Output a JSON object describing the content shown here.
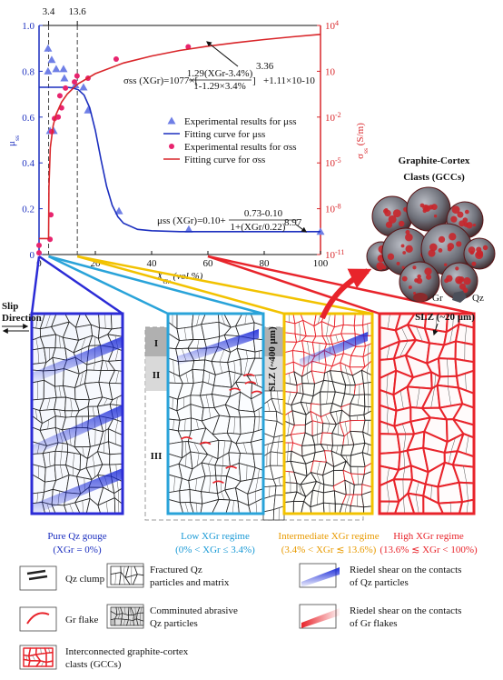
{
  "chart_data": {
    "type": "line",
    "x_label": {
      "text": "X",
      "sub": "Gr",
      "rest": " (vol.%)"
    },
    "y_label": {
      "text": "μ",
      "sub": "ss"
    },
    "y2_label": {
      "text": "σ",
      "sub": "ss",
      "rest": " (S/m)"
    },
    "xlim": [
      0,
      100
    ],
    "xticks": [
      0,
      20,
      40,
      60,
      80,
      100
    ],
    "ylim": [
      0,
      1
    ],
    "yticks": [
      0,
      0.2,
      0.4,
      0.6,
      0.8,
      {
        "value": 1,
        "label": "1.0"
      }
    ],
    "y2lim": [
      1e-11,
      10000
    ],
    "y2scale": "log",
    "y2ticks": [
      {
        "value": 1e-11,
        "label": "10",
        "exponent": "-11"
      },
      {
        "value": 1e-08,
        "label": "10",
        "exponent": "-8"
      },
      {
        "value": 1e-05,
        "label": "10",
        "exponent": "-5"
      },
      {
        "value": 0.01,
        "label": "10",
        "exponent": "-2"
      },
      10,
      {
        "value": 10000,
        "label": "10",
        "exponent": "4"
      }
    ],
    "x_markers": [
      3.4,
      13.6
    ],
    "series": [
      {
        "name": "Experimental results for μss",
        "marker": "triangle",
        "color": "#6f7fe6",
        "axis": "y",
        "x": [
          3.2,
          4.5,
          3.2,
          6.1,
          8.7,
          9,
          12.9,
          15.8,
          17.4,
          5.2,
          3.9,
          28.4,
          53.2,
          100
        ],
        "values": [
          0.9,
          0.85,
          0.8,
          0.81,
          0.81,
          0.77,
          0.74,
          0.73,
          0.63,
          0.54,
          0.54,
          0.19,
          0.11,
          0.1
        ]
      },
      {
        "name": "Fitting curve for μss",
        "marker": "line",
        "color": "#1c2fbf",
        "axis": "y",
        "x": [
          0,
          2,
          4,
          6,
          8,
          10,
          12,
          14,
          16,
          18,
          20,
          22,
          24,
          26,
          28,
          30,
          35,
          40,
          50,
          60,
          80,
          100
        ],
        "values": [
          0.73,
          0.73,
          0.73,
          0.73,
          0.73,
          0.73,
          0.727,
          0.719,
          0.696,
          0.641,
          0.542,
          0.415,
          0.298,
          0.215,
          0.165,
          0.137,
          0.11,
          0.104,
          0.1,
          0.1,
          0.1,
          0.1
        ]
      },
      {
        "name": "Experimental results for σss",
        "marker": "circle",
        "color": "#e8246e",
        "axis": "y2",
        "x": [
          0,
          0,
          3.9,
          4.2,
          4.5,
          5.5,
          6.8,
          8,
          7.4,
          9.4,
          12.6,
          13.5,
          17.4,
          27.4,
          53
        ],
        "values": [
          4e-11,
          1.3e-11,
          1e-10,
          4e-09,
          0.0011,
          0.008,
          0.01,
          0.04,
          0.25,
          0.8,
          2,
          5,
          3.5,
          63,
          400
        ]
      },
      {
        "name": "Fitting curve for σss",
        "marker": "line",
        "color": "#d9262a",
        "axis": "y2",
        "x": [
          0,
          3.4,
          3.5,
          4,
          5,
          6,
          8,
          10,
          13.6,
          20,
          30,
          40,
          50,
          60,
          70,
          80,
          90,
          100
        ],
        "values": [
          1.11e-10,
          1.11e-10,
          2.5e-07,
          0.0001,
          0.0027,
          0.014,
          0.095,
          0.32,
          1.4,
          7,
          35,
          100,
          230,
          440,
          750,
          1200,
          1800,
          2600
        ]
      }
    ],
    "equations": [
      {
        "lhs": "σss (XGr)=1077×[",
        "num": "1.29(XGr-3.4%)",
        "den": "1-1.29×3.4%",
        "close": "]",
        "exp": "3.36",
        "tail": "+1.11×10-10"
      },
      {
        "lhs": "μss (XGr)=0.10+",
        "num": "0.73-0.10",
        "den": "1+(XGr/0.22)",
        "exp": "8.97"
      }
    ]
  },
  "diagram": {
    "gcc_title": [
      "Graphite-Cortex",
      "Clasts (GCCs)"
    ],
    "gcc_legend": [
      "Gr",
      "Qz"
    ],
    "slip_direction": [
      "Slip",
      "Direction"
    ],
    "slz_thin": "SLZ (~20 μm)",
    "zones": [
      "I",
      "II",
      "III"
    ],
    "slz_thick": "SLZ (~400 μm)",
    "regimes": [
      {
        "title": "Pure Qz gouge",
        "range": "(XGr = 0%)"
      },
      {
        "title": "Low XGr regime",
        "range": "(0% < XGr ≤ 3.4%)"
      },
      {
        "title": "Intermediate XGr regime",
        "range": "(3.4% < XGr ≲ 13.6%)"
      },
      {
        "title": "High XGr regime",
        "range": "(13.6% ≲ XGr < 100%)"
      }
    ],
    "legend": [
      {
        "label": [
          "Qz clump"
        ]
      },
      {
        "label": [
          "Fractured Qz",
          "particles and matrix"
        ]
      },
      {
        "label": [
          "Riedel shear on the contacts",
          "of Qz particles"
        ]
      },
      {
        "label": [
          "Gr flake"
        ]
      },
      {
        "label": [
          "Comminuted abrasive",
          "Qz particles"
        ]
      },
      {
        "label": [
          "Riedel shear on the contacts",
          "of Gr flakes"
        ]
      },
      {
        "label": [
          "Interconnected graphite-cortex",
          "clasts (GCCs)"
        ]
      }
    ]
  }
}
